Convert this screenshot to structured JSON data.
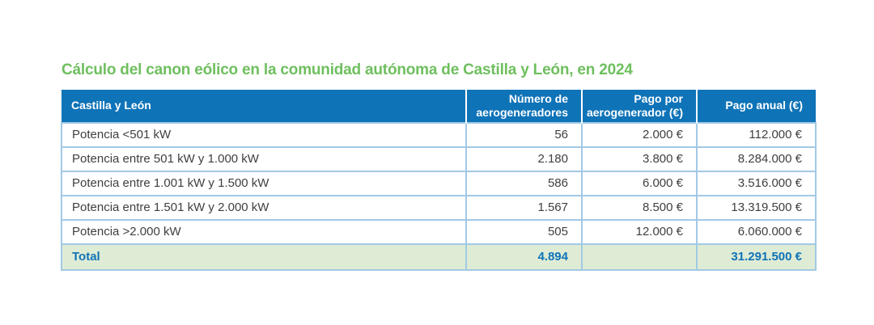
{
  "title": "Cálculo del canon eólico en la comunidad autónoma de Castilla y León, en 2024",
  "colors": {
    "title_green": "#6ebf5e",
    "header_blue": "#0f73b8",
    "cell_border_blue": "#a2c9e4",
    "total_row_bg": "#dfecd5",
    "total_row_text": "#0f73b8",
    "body_text": "#3f3f3f"
  },
  "table": {
    "columns": [
      "Castilla y León",
      "Número de aerogeneradores",
      "Pago por aerogenerador (€)",
      "Pago anual (€)"
    ],
    "rows": [
      {
        "label": "Potencia <501 kW",
        "num": "56",
        "pago": "2.000 €",
        "anual": "112.000 €"
      },
      {
        "label": "Potencia entre 501 kW y 1.000 kW",
        "num": "2.180",
        "pago": "3.800 €",
        "anual": "8.284.000 €"
      },
      {
        "label": "Potencia entre 1.001 kW y 1.500 kW",
        "num": "586",
        "pago": "6.000 €",
        "anual": "3.516.000 €"
      },
      {
        "label": "Potencia entre 1.501 kW y 2.000 kW",
        "num": "1.567",
        "pago": "8.500 €",
        "anual": "13.319.500 €"
      },
      {
        "label": "Potencia >2.000 kW",
        "num": "505",
        "pago": "12.000 €",
        "anual": "6.060.000 €"
      }
    ],
    "total": {
      "label": "Total",
      "num": "4.894",
      "pago": "",
      "anual": "31.291.500 €"
    }
  },
  "chart_data": {
    "type": "table",
    "title": "Cálculo del canon eólico en la comunidad autónoma de Castilla y León, en 2024",
    "columns": [
      "Castilla y León",
      "Número de aerogeneradores",
      "Pago por aerogenerador (€)",
      "Pago anual (€)"
    ],
    "rows": [
      [
        "Potencia <501 kW",
        56,
        2000,
        112000
      ],
      [
        "Potencia entre 501 kW y 1.000 kW",
        2180,
        3800,
        8284000
      ],
      [
        "Potencia entre 1.001 kW y 1.500 kW",
        586,
        6000,
        3516000
      ],
      [
        "Potencia entre 1.501 kW y 2.000 kW",
        1567,
        8500,
        13319500
      ],
      [
        "Potencia >2.000 kW",
        505,
        12000,
        6060000
      ]
    ],
    "total_row": [
      "Total",
      4894,
      null,
      31291500
    ],
    "units": {
      "pago_por_aerogenerador": "€",
      "pago_anual": "€"
    },
    "layout_hints": {
      "header_style": "blue-bar",
      "total_row_style": "light-green",
      "numeric_alignment": "right"
    }
  }
}
